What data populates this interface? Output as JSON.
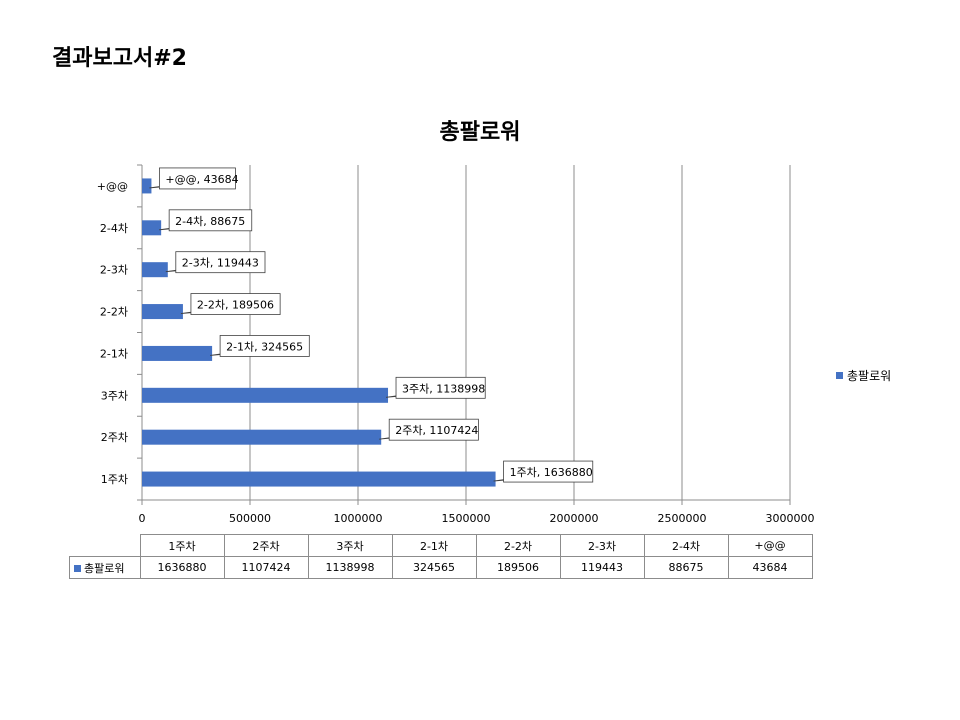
{
  "page_title": "결과보고서#2",
  "chart_data": {
    "type": "bar",
    "orientation": "horizontal",
    "title": "총팔로워",
    "categories": [
      "1주차",
      "2주차",
      "3주차",
      "2-1차",
      "2-2차",
      "2-3차",
      "2-4차",
      "+@@"
    ],
    "series": [
      {
        "name": "총팔로워",
        "color": "#4472C4",
        "values": [
          1636880,
          1107424,
          1138998,
          324565,
          189506,
          119443,
          88675,
          43684
        ]
      }
    ],
    "data_labels": [
      "1주차, 1636880",
      "2주차, 1107424",
      "3주차, 1138998",
      "2-1차, 324565",
      "2-2차, 189506",
      "2-3차, 119443",
      "2-4차, 88675",
      "+@@, 43684"
    ],
    "xlim": [
      0,
      3000000
    ],
    "x_ticks": [
      "0",
      "500000",
      "1000000",
      "1500000",
      "2000000",
      "2500000",
      "3000000"
    ],
    "grid": true,
    "legend_position": "right",
    "data_table": true
  }
}
